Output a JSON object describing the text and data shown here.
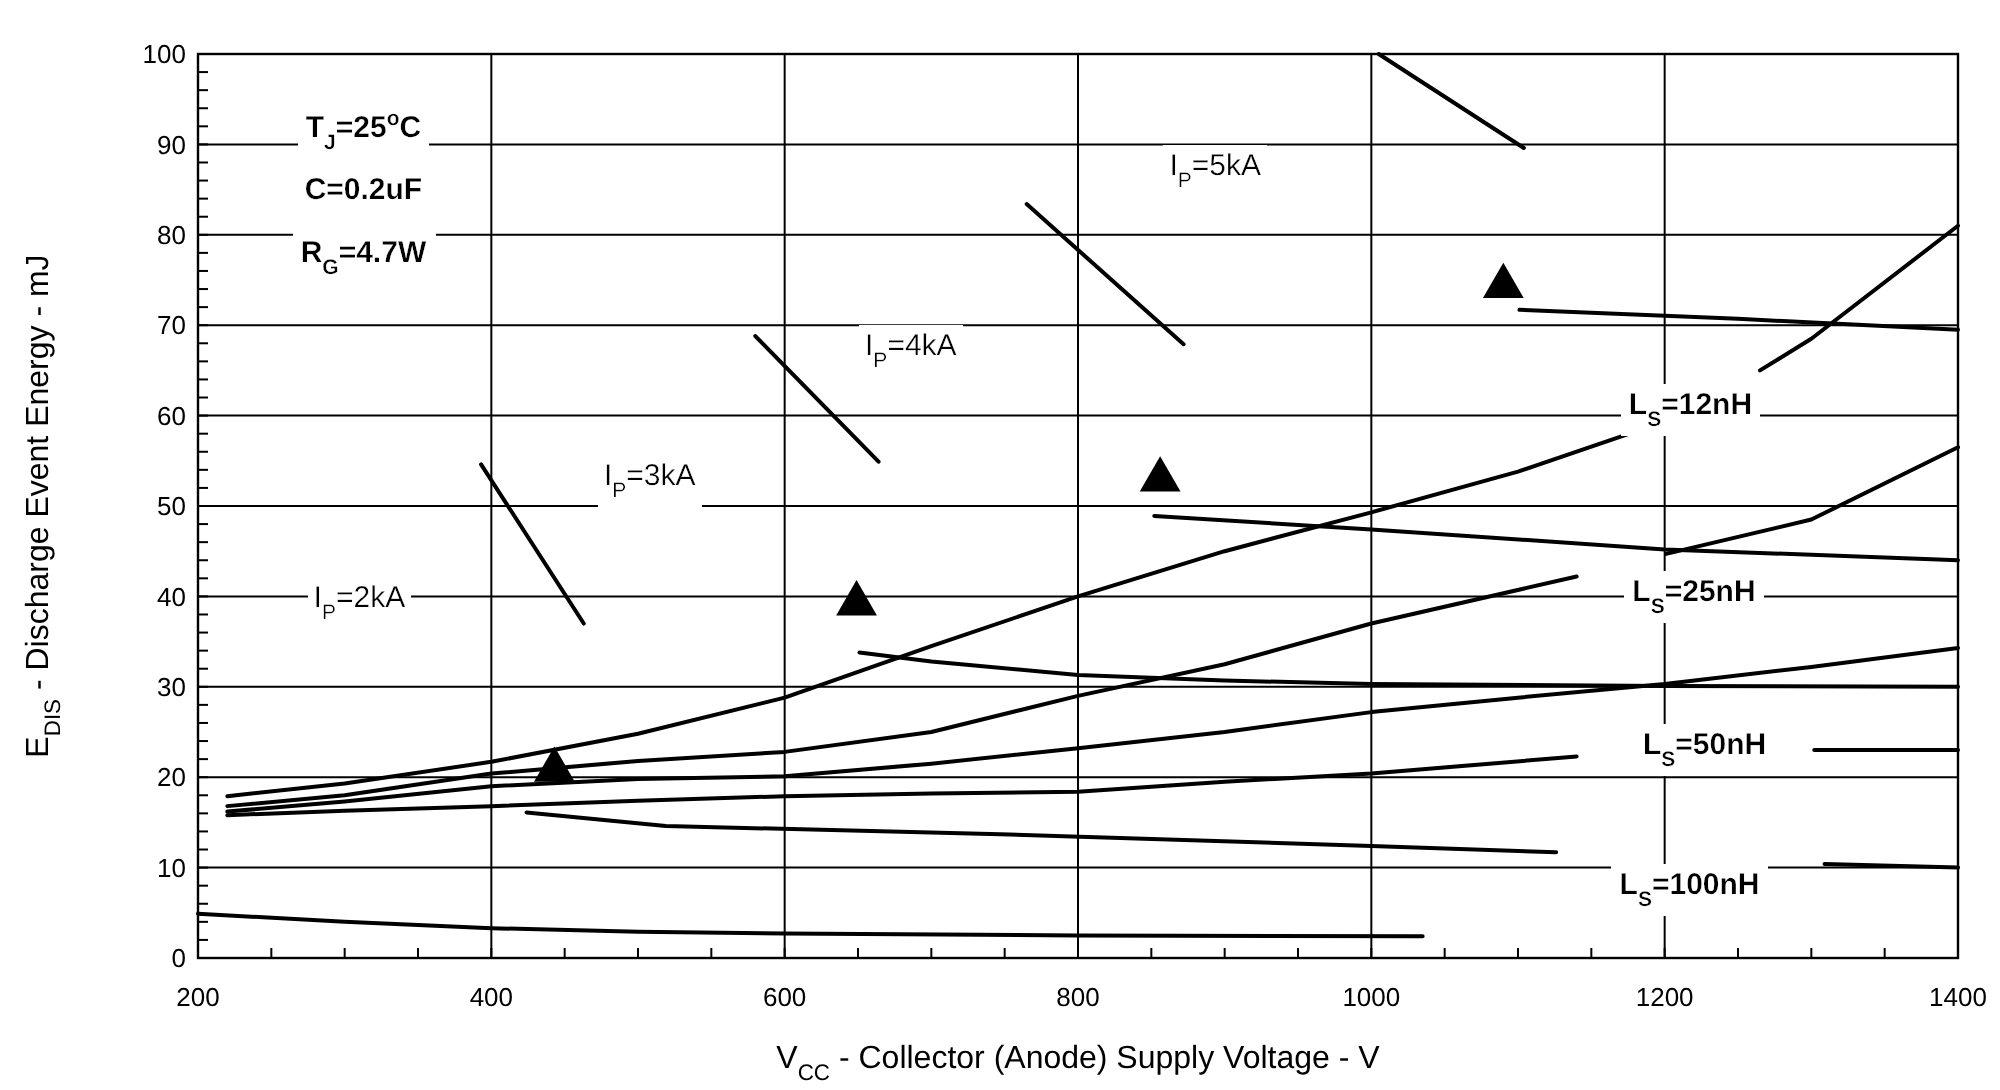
{
  "chart_data": {
    "type": "line",
    "xlabel": "V$_{CC}$ - Collector (Anode) Supply Voltage - V",
    "ylabel": "E$_{DIS}$ - Discharge Event Energy - mJ",
    "xlim": [
      200,
      1400
    ],
    "ylim": [
      0,
      100
    ],
    "xticks": [
      200,
      {
        "value": 250,
        "label": null
      },
      {
        "value": 300,
        "label": null
      },
      {
        "value": 350,
        "label": null
      },
      400,
      {
        "value": 450,
        "label": null
      },
      {
        "value": 500,
        "label": null
      },
      {
        "value": 550,
        "label": null
      },
      600,
      {
        "value": 650,
        "label": null
      },
      {
        "value": 700,
        "label": null
      },
      {
        "value": 750,
        "label": null
      },
      800,
      {
        "value": 850,
        "label": null
      },
      {
        "value": 900,
        "label": null
      },
      {
        "value": 950,
        "label": null
      },
      1000,
      {
        "value": 1050,
        "label": null
      },
      {
        "value": 1100,
        "label": null
      },
      {
        "value": 1150,
        "label": null
      },
      1200,
      {
        "value": 1250,
        "label": null
      },
      {
        "value": 1300,
        "label": null
      },
      {
        "value": 1350,
        "label": null
      },
      1400
    ],
    "yticks": [
      0,
      {
        "value": 2,
        "label": null
      },
      {
        "value": 4,
        "label": null
      },
      {
        "value": 6,
        "label": null
      },
      {
        "value": 8,
        "label": null
      },
      10,
      {
        "value": 12,
        "label": null
      },
      {
        "value": 14,
        "label": null
      },
      {
        "value": 16,
        "label": null
      },
      {
        "value": 18,
        "label": null
      },
      20,
      {
        "value": 22,
        "label": null
      },
      {
        "value": 24,
        "label": null
      },
      {
        "value": 26,
        "label": null
      },
      {
        "value": 28,
        "label": null
      },
      30,
      {
        "value": 32,
        "label": null
      },
      {
        "value": 34,
        "label": null
      },
      {
        "value": 36,
        "label": null
      },
      {
        "value": 38,
        "label": null
      },
      40,
      {
        "value": 42,
        "label": null
      },
      {
        "value": 44,
        "label": null
      },
      {
        "value": 46,
        "label": null
      },
      {
        "value": 48,
        "label": null
      },
      50,
      {
        "value": 52,
        "label": null
      },
      {
        "value": 54,
        "label": null
      },
      {
        "value": 56,
        "label": null
      },
      {
        "value": 58,
        "label": null
      },
      60,
      {
        "value": 62,
        "label": null
      },
      {
        "value": 64,
        "label": null
      },
      {
        "value": 66,
        "label": null
      },
      {
        "value": 68,
        "label": null
      },
      70,
      {
        "value": 72,
        "label": null
      },
      {
        "value": 74,
        "label": null
      },
      {
        "value": 76,
        "label": null
      },
      {
        "value": 78,
        "label": null
      },
      80,
      {
        "value": 82,
        "label": null
      },
      {
        "value": 84,
        "label": null
      },
      {
        "value": 86,
        "label": null
      },
      {
        "value": 88,
        "label": null
      },
      90,
      {
        "value": 92,
        "label": null
      },
      {
        "value": 94,
        "label": null
      },
      {
        "value": 96,
        "label": null
      },
      {
        "value": 98,
        "label": null
      },
      100
    ],
    "grid": true,
    "series": [
      {
        "color": "#000000",
        "x": [
          220,
          300,
          400,
          500,
          600,
          700,
          800,
          900,
          1000,
          1100,
          1176,
          1220,
          1265,
          1300,
          1400
        ],
        "values": [
          17.9,
          19.3,
          21.7,
          24.8,
          28.8,
          34.5,
          40,
          45,
          49.3,
          53.8,
          58,
          null,
          65,
          68.5,
          81
        ]
      },
      {
        "color": "#000000",
        "x": [
          220,
          300,
          400,
          500,
          600,
          700,
          800,
          900,
          1000,
          1140,
          1170,
          1201,
          1300,
          1400
        ],
        "values": [
          16.8,
          18,
          20.4,
          21.8,
          22.8,
          25,
          29,
          32.5,
          37,
          42.2,
          null,
          44.7,
          48.5,
          56.5
        ]
      },
      {
        "color": "#000000",
        "x": [
          220,
          300,
          400,
          500,
          600,
          700,
          800,
          900,
          1000,
          1100,
          1200,
          1300,
          1400
        ],
        "values": [
          16.2,
          17.3,
          19,
          19.8,
          20.1,
          21.5,
          23.2,
          25,
          27.2,
          28.8,
          30.3,
          32.2,
          34.3
        ]
      },
      {
        "color": "#000000",
        "x": [
          220,
          300,
          400,
          500,
          600,
          700,
          800,
          900,
          1000,
          1140,
          1220,
          1302,
          1400
        ],
        "values": [
          15.8,
          16.3,
          16.8,
          17.4,
          17.9,
          18.2,
          18.4,
          19.5,
          20.4,
          22.3,
          null,
          23,
          23
        ]
      },
      {
        "color": "#000000",
        "x": [
          200,
          300,
          400,
          500,
          600,
          800,
          1035
        ],
        "values": [
          4.9,
          4,
          3.3,
          2.9,
          2.7,
          2.5,
          2.4
        ]
      },
      {
        "color": "#000000",
        "x": [
          424,
          519,
          747,
          1000,
          1126,
          1220,
          1309,
          1400
        ],
        "values": [
          16.1,
          14.6,
          13.7,
          12.4,
          11.7,
          null,
          10.4,
          10
        ]
      },
      {
        "color": "#000000",
        "x": [
          651,
          700,
          800,
          900,
          1000,
          1200,
          1400
        ],
        "values": [
          33.8,
          32.8,
          31.3,
          30.7,
          30.3,
          30.1,
          30
        ]
      },
      {
        "color": "#000000",
        "x": [
          852,
          1000,
          1200,
          1400
        ],
        "values": [
          48.9,
          47.4,
          45.2,
          44
        ]
      },
      {
        "color": "#000000",
        "x": [
          1101,
          1250,
          1400
        ],
        "values": [
          71.7,
          70.7,
          69.5
        ]
      },
      {
        "color": "#000000",
        "x": [
          393,
          463
        ],
        "values": [
          54.6,
          37
        ]
      },
      {
        "color": "#000000",
        "x": [
          580,
          664
        ],
        "values": [
          68.8,
          54.9
        ]
      },
      {
        "color": "#000000",
        "x": [
          765,
          872
        ],
        "values": [
          83.4,
          67.9
        ]
      },
      {
        "color": "#000000",
        "x": [
          1005,
          1104
        ],
        "values": [
          100,
          89.6
        ]
      },
      {
        "type": "scatter",
        "marker": "triangle",
        "color": "#000000",
        "x": [
          443,
          649,
          856,
          1090
        ],
        "values": [
          20.8,
          39.2,
          52.9,
          74.3
        ]
      }
    ],
    "annotations": [
      "T$_{J}$=25$^{o}$C",
      "C=0.2uF",
      "R$_{G}$=4.7W",
      "I$_{P}$=2kA",
      "I$_{P}$=3kA",
      "I$_{P}$=4kA",
      "I$_{P}$=5kA",
      "L$_{S}$=12nH",
      "L$_{S}$=25nH",
      "L$_{S}$=50nH",
      "L$_{S}$=100nH"
    ]
  }
}
